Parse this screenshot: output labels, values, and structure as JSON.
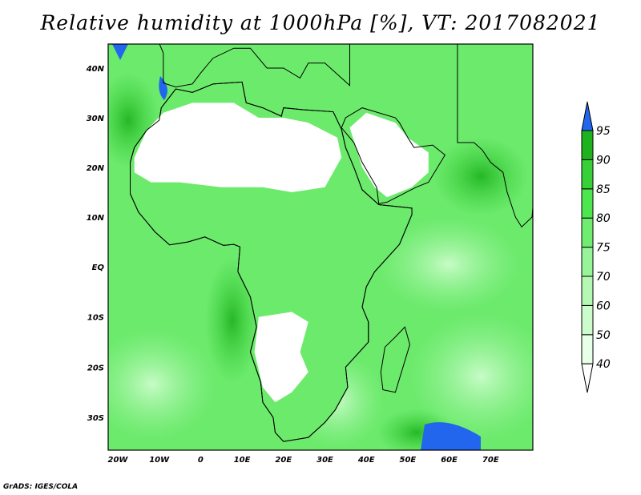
{
  "title": "Relative humidity at 1000hPa [%], VT: 2017082021",
  "footer": "GrADS: IGES/COLA",
  "axes": {
    "lat_labels": [
      {
        "text": "40N",
        "lat": 40
      },
      {
        "text": "30N",
        "lat": 30
      },
      {
        "text": "20N",
        "lat": 20
      },
      {
        "text": "10N",
        "lat": 10
      },
      {
        "text": "EQ",
        "lat": 0
      },
      {
        "text": "10S",
        "lat": -10
      },
      {
        "text": "20S",
        "lat": -20
      },
      {
        "text": "30S",
        "lat": -30
      }
    ],
    "lon_labels": [
      {
        "text": "20W",
        "lon": -20
      },
      {
        "text": "10W",
        "lon": -10
      },
      {
        "text": "0",
        "lon": 0
      },
      {
        "text": "10E",
        "lon": 10
      },
      {
        "text": "20E",
        "lon": 20
      },
      {
        "text": "30E",
        "lon": 30
      },
      {
        "text": "40E",
        "lon": 40
      },
      {
        "text": "50E",
        "lon": 50
      },
      {
        "text": "60E",
        "lon": 60
      },
      {
        "text": "70E",
        "lon": 70
      }
    ]
  },
  "colorbar": {
    "levels": [
      "40",
      "50",
      "60",
      "70",
      "75",
      "80",
      "85",
      "90",
      "95"
    ],
    "colors": [
      "#e8ffe8",
      "#ccfccc",
      "#b4f8b4",
      "#98f498",
      "#70ec70",
      "#4ee64e",
      "#38d038",
      "#1eb21e"
    ],
    "over_color": "#2266ee",
    "under_color": "#ffffff"
  }
}
